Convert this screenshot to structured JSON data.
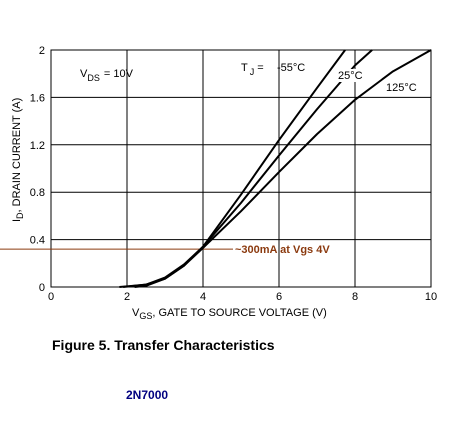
{
  "chart_data": {
    "type": "line",
    "title": "Figure 5. Transfer Characteristics",
    "part_number": "2N7000",
    "x_label": {
      "main": "V",
      "sub": "GS",
      "rest": ", GATE TO SOURCE VOLTAGE (V)"
    },
    "y_label": {
      "main": "I",
      "sub": "D",
      "rest": ", DRAIN CURRENT (A)"
    },
    "condition": {
      "main": "V",
      "sub": "DS",
      "rest": "= 10V"
    },
    "temperature_prefix": {
      "main": "T",
      "sub": "J",
      "rest": "="
    },
    "xlim": [
      0,
      10
    ],
    "xticks": [
      0,
      2,
      4,
      6,
      8,
      10
    ],
    "ylim": [
      0,
      2
    ],
    "yticks": [
      0,
      0.4,
      0.8,
      1.2,
      1.6,
      2
    ],
    "grid": true,
    "series": [
      {
        "name": "-55°C",
        "color": "#000000",
        "x": [
          1.8,
          2.5,
          3,
          3.5,
          4,
          5,
          6,
          7,
          7.74
        ],
        "values": [
          0,
          0.02,
          0.07,
          0.18,
          0.34,
          0.78,
          1.24,
          1.68,
          2
        ]
      },
      {
        "name": "25°C",
        "color": "#000000",
        "x": [
          1.9,
          2.5,
          3,
          3.5,
          4,
          5,
          6,
          7,
          8,
          8.45
        ],
        "values": [
          0,
          0.02,
          0.08,
          0.19,
          0.34,
          0.71,
          1.11,
          1.5,
          1.87,
          2
        ]
      },
      {
        "name": "125°C",
        "color": "#000000",
        "x": [
          2.2,
          2.5,
          3,
          3.5,
          4,
          5,
          6,
          7,
          8,
          9,
          10
        ],
        "values": [
          0,
          0.01,
          0.07,
          0.18,
          0.33,
          0.64,
          0.97,
          1.29,
          1.58,
          1.82,
          2
        ]
      }
    ],
    "annotation": {
      "text": "~300mA at Vgs 4V",
      "value": 0.32,
      "color": "#8b3a0f"
    }
  }
}
